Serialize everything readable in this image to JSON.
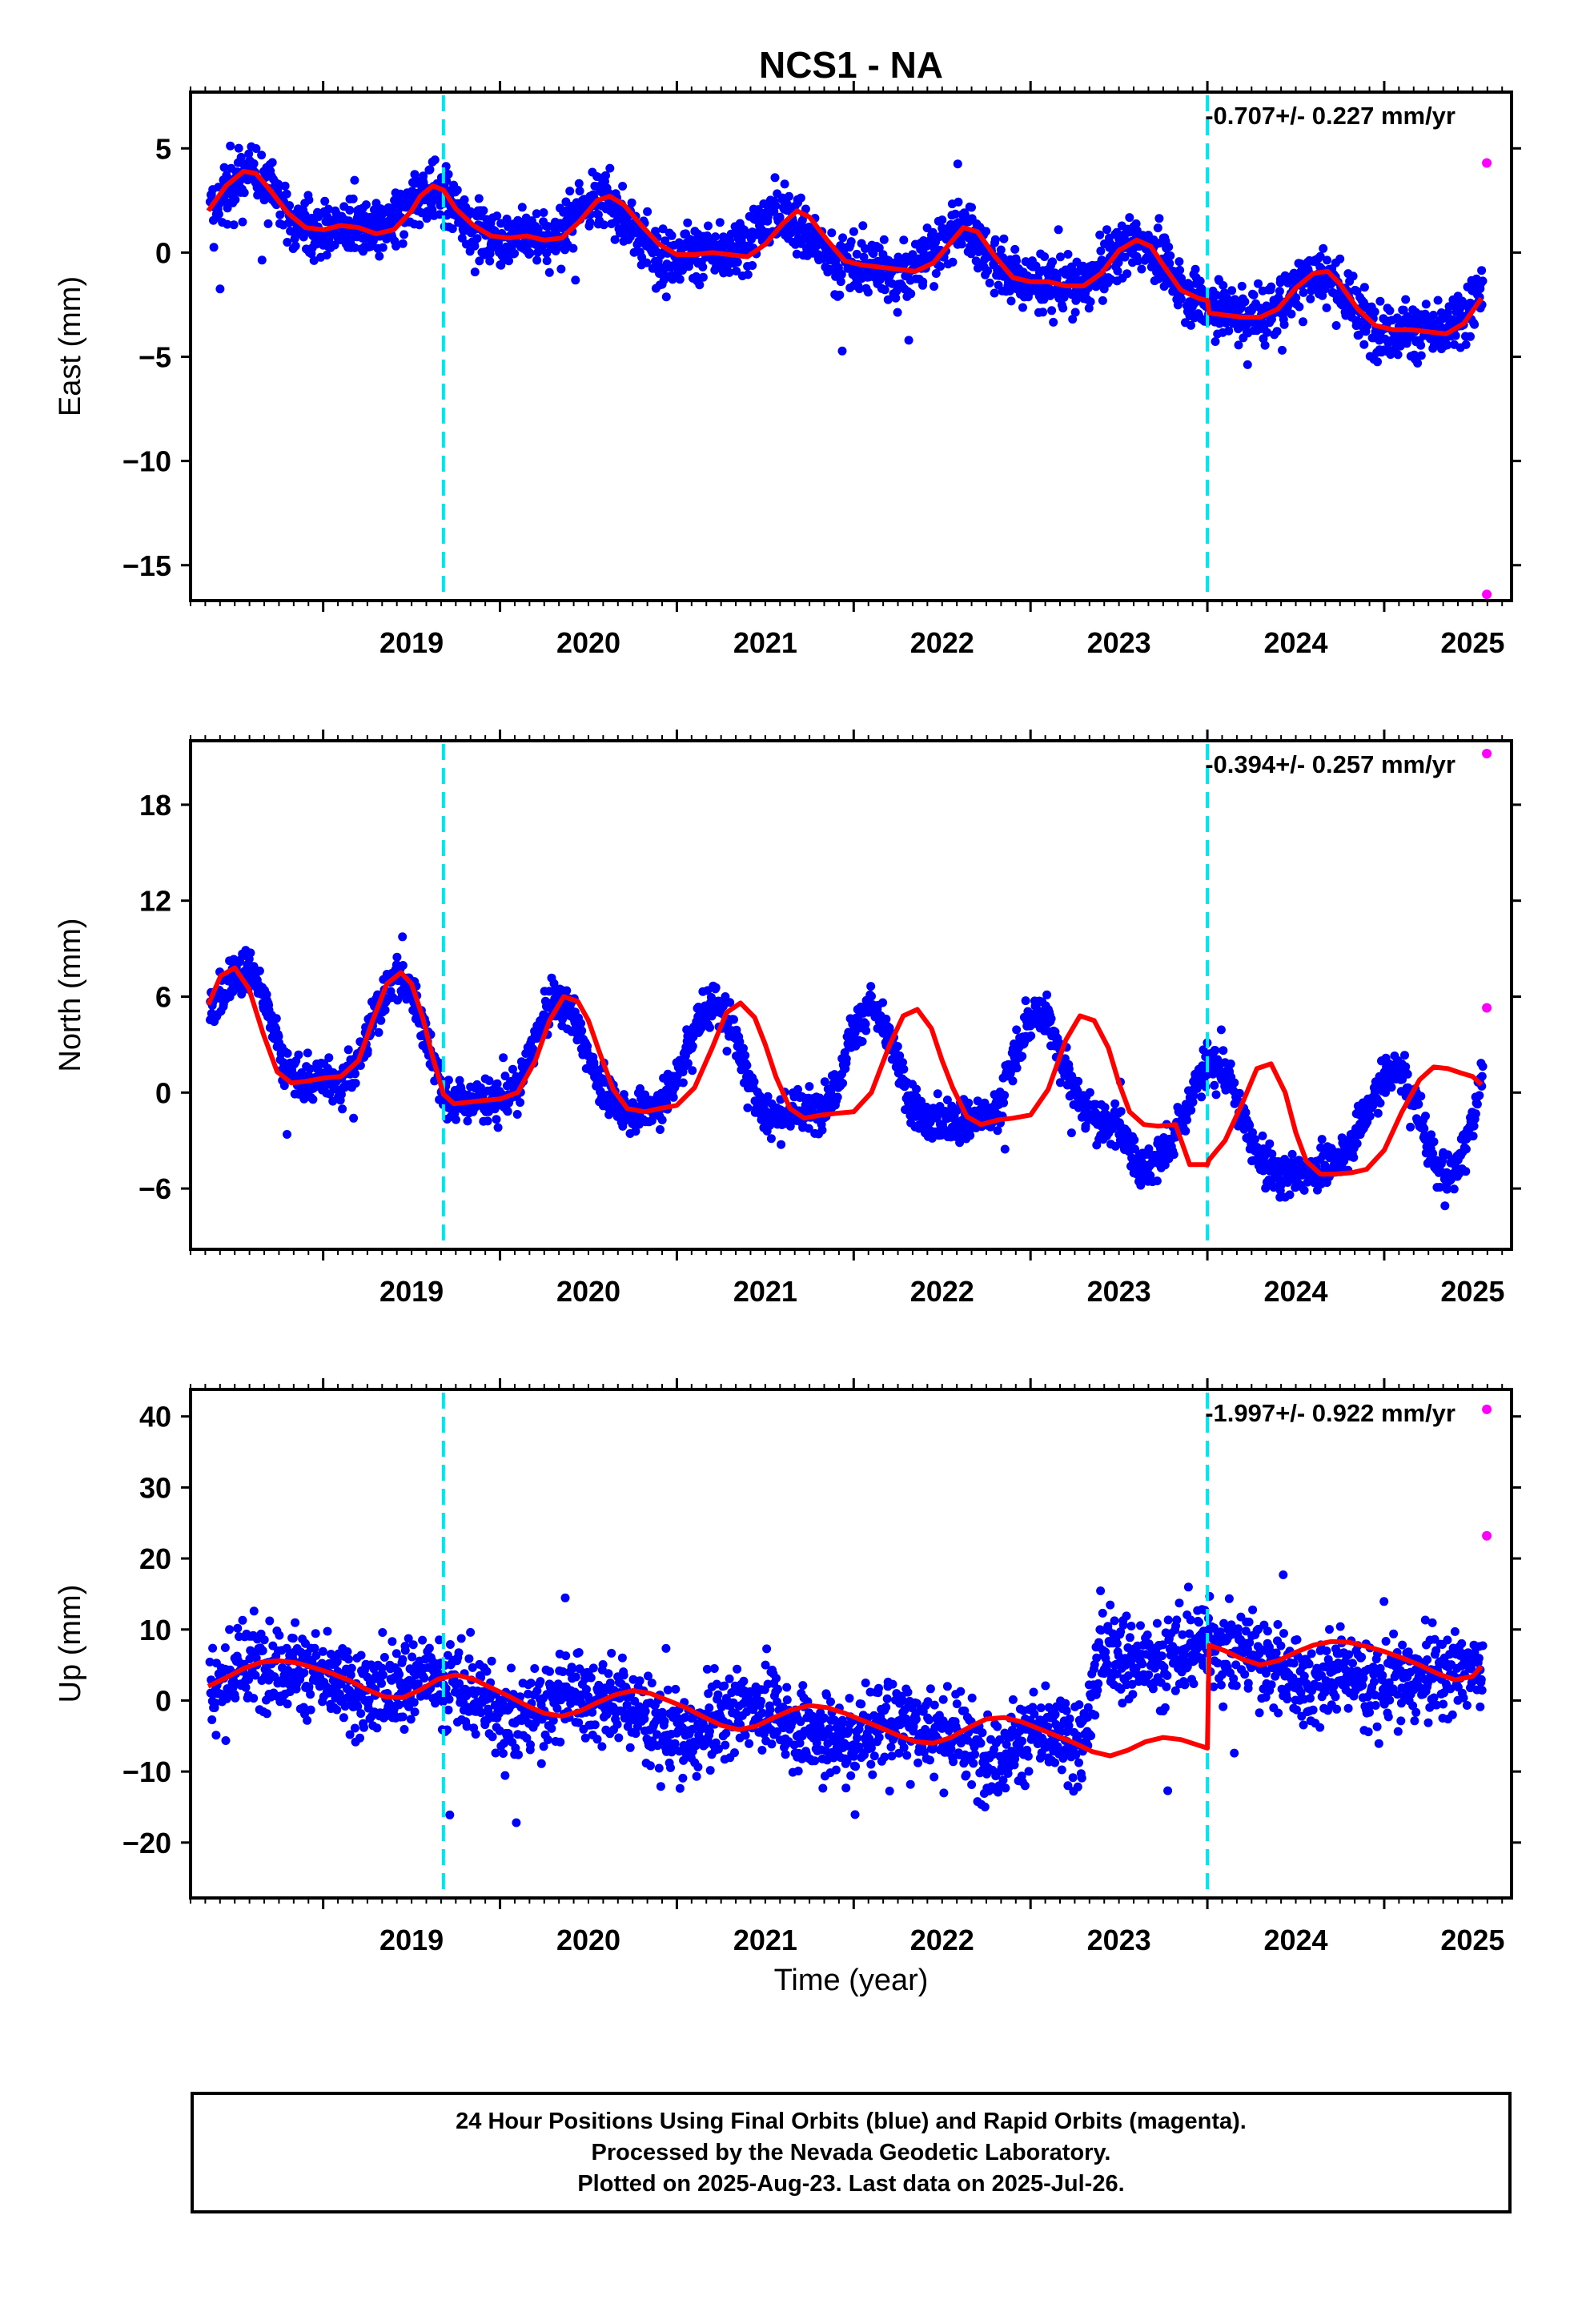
{
  "figure": {
    "title": "NCS1 - NA",
    "x_label": "Time (year)",
    "colors": {
      "final_orbits": "#0000ff",
      "rapid_orbits": "#ff00ff",
      "model": "#ff0000",
      "event_lines": "#00e5ee",
      "frame": "#000000"
    }
  },
  "footer": {
    "line1": "24 Hour Positions Using Final Orbits (blue) and Rapid Orbits (magenta).",
    "line2": "Processed by the Nevada Geodetic Laboratory.",
    "line3": "Plotted on 2025-Aug-23. Last data on 2025-Jul-26."
  },
  "chart_data": [
    {
      "type": "scatter",
      "ylabel": "East (mm)",
      "xlabel": "",
      "rate_label": "-0.707+/- 0.227 mm/yr",
      "xlim": [
        2018.25,
        2025.72
      ],
      "ylim": [
        -16.7,
        7.7
      ],
      "x_ticks": [
        2019,
        2020,
        2021,
        2022,
        2023,
        2024,
        2025
      ],
      "y_ticks": [
        5,
        0,
        -5,
        -10,
        -15
      ],
      "event_lines_x": [
        2019.68,
        2024.0
      ],
      "final_orbits_sampled": {
        "x": [
          2018.4,
          2018.5,
          2018.6,
          2018.7,
          2018.8,
          2018.9,
          2019.0,
          2019.1,
          2019.2,
          2019.3,
          2019.4,
          2019.5,
          2019.6,
          2019.7,
          2019.8,
          2019.9,
          2020.0,
          2020.1,
          2020.2,
          2020.3,
          2020.4,
          2020.5,
          2020.6,
          2020.7,
          2020.8,
          2020.9,
          2021.0,
          2021.1,
          2021.2,
          2021.3,
          2021.4,
          2021.5,
          2021.6,
          2021.7,
          2021.8,
          2021.9,
          2022.0,
          2022.1,
          2022.2,
          2022.3,
          2022.4,
          2022.5,
          2022.6,
          2022.7,
          2022.8,
          2022.9,
          2023.0,
          2023.1,
          2023.2,
          2023.3,
          2023.4,
          2023.5,
          2023.6,
          2023.7,
          2023.8,
          2023.9,
          2024.0,
          2024.1,
          2024.2,
          2024.3,
          2024.4,
          2024.5,
          2024.6,
          2024.7,
          2024.8,
          2024.9,
          2025.0,
          2025.1,
          2025.2,
          2025.3,
          2025.4,
          2025.5,
          2025.55
        ],
        "y": [
          2.0,
          3.3,
          3.9,
          3.2,
          1.8,
          1.2,
          1.0,
          1.2,
          1.1,
          0.9,
          1.3,
          2.5,
          3.2,
          2.5,
          1.5,
          0.9,
          0.6,
          0.7,
          0.6,
          0.7,
          1.6,
          2.6,
          2.5,
          1.6,
          0.6,
          -0.1,
          -0.1,
          0.0,
          -0.1,
          -0.2,
          0.4,
          1.5,
          2.0,
          1.4,
          0.3,
          -0.5,
          -0.6,
          -0.7,
          -0.8,
          -0.9,
          -0.4,
          0.6,
          1.3,
          0.7,
          -0.5,
          -1.3,
          -1.4,
          -1.4,
          -1.6,
          -1.5,
          -0.9,
          0.2,
          0.6,
          0.0,
          -1.1,
          -2.0,
          -2.4,
          -2.8,
          -3.0,
          -3.1,
          -2.6,
          -1.6,
          -0.8,
          -1.2,
          -2.4,
          -3.4,
          -3.7,
          -3.7,
          -3.8,
          -3.9,
          -3.5,
          -2.6,
          -1.8
        ]
      },
      "rapid_orbits": {
        "x": [
          2025.58,
          2025.58
        ],
        "y": [
          4.3,
          -16.4
        ]
      },
      "model_line": {
        "x": [
          2018.35,
          2018.45,
          2018.55,
          2018.62,
          2018.7,
          2018.8,
          2018.9,
          2019.0,
          2019.1,
          2019.2,
          2019.3,
          2019.4,
          2019.5,
          2019.55,
          2019.62,
          2019.68,
          2019.75,
          2019.85,
          2019.95,
          2020.05,
          2020.15,
          2020.25,
          2020.35,
          2020.45,
          2020.55,
          2020.62,
          2020.7,
          2020.8,
          2020.9,
          2021.0,
          2021.1,
          2021.2,
          2021.3,
          2021.4,
          2021.5,
          2021.6,
          2021.68,
          2021.75,
          2021.85,
          2021.95,
          2022.05,
          2022.15,
          2022.25,
          2022.35,
          2022.45,
          2022.55,
          2022.62,
          2022.7,
          2022.8,
          2022.9,
          2023.0,
          2023.1,
          2023.2,
          2023.3,
          2023.4,
          2023.5,
          2023.6,
          2023.68,
          2023.75,
          2023.85,
          2023.95,
          2024.0,
          2024.01,
          2024.1,
          2024.2,
          2024.3,
          2024.4,
          2024.5,
          2024.6,
          2024.68,
          2024.75,
          2024.85,
          2024.95,
          2025.05,
          2025.15,
          2025.25,
          2025.35,
          2025.45,
          2025.55
        ],
        "y": [
          2.0,
          3.2,
          3.9,
          3.8,
          3.0,
          1.9,
          1.2,
          1.1,
          1.3,
          1.2,
          0.9,
          1.1,
          2.0,
          2.7,
          3.2,
          3.0,
          2.1,
          1.3,
          0.8,
          0.7,
          0.8,
          0.6,
          0.7,
          1.5,
          2.5,
          2.7,
          2.3,
          1.3,
          0.4,
          -0.1,
          -0.1,
          0.0,
          -0.1,
          -0.2,
          0.4,
          1.4,
          2.0,
          1.7,
          0.6,
          -0.4,
          -0.6,
          -0.7,
          -0.8,
          -0.9,
          -0.5,
          0.5,
          1.2,
          1.0,
          -0.2,
          -1.2,
          -1.4,
          -1.4,
          -1.6,
          -1.6,
          -1.0,
          0.1,
          0.6,
          0.3,
          -0.6,
          -1.8,
          -2.2,
          -2.3,
          -2.9,
          -3.0,
          -3.1,
          -3.1,
          -2.7,
          -1.7,
          -1.0,
          -0.9,
          -1.5,
          -2.7,
          -3.5,
          -3.7,
          -3.7,
          -3.8,
          -3.9,
          -3.4,
          -2.2
        ]
      }
    },
    {
      "type": "scatter",
      "ylabel": "North (mm)",
      "xlabel": "",
      "rate_label": "-0.394+/- 0.257 mm/yr",
      "xlim": [
        2018.25,
        2025.72
      ],
      "ylim": [
        -9.8,
        22.0
      ],
      "x_ticks": [
        2019,
        2020,
        2021,
        2022,
        2023,
        2024,
        2025
      ],
      "y_ticks": [
        18,
        12,
        6,
        0,
        -6
      ],
      "event_lines_x": [
        2019.68,
        2024.0
      ],
      "final_orbits_sampled": {
        "x": [
          2018.4,
          2018.5,
          2018.6,
          2018.7,
          2018.8,
          2018.9,
          2019.0,
          2019.1,
          2019.2,
          2019.3,
          2019.4,
          2019.5,
          2019.6,
          2019.7,
          2019.8,
          2019.9,
          2020.0,
          2020.1,
          2020.2,
          2020.3,
          2020.4,
          2020.5,
          2020.6,
          2020.7,
          2020.8,
          2020.9,
          2021.0,
          2021.1,
          2021.2,
          2021.3,
          2021.4,
          2021.5,
          2021.6,
          2021.7,
          2021.8,
          2021.9,
          2022.0,
          2022.1,
          2022.2,
          2022.3,
          2022.4,
          2022.5,
          2022.6,
          2022.7,
          2022.8,
          2022.9,
          2023.0,
          2023.1,
          2023.2,
          2023.3,
          2023.4,
          2023.5,
          2023.6,
          2023.7,
          2023.8,
          2023.9,
          2024.0,
          2024.1,
          2024.2,
          2024.3,
          2024.4,
          2024.5,
          2024.6,
          2024.7,
          2024.8,
          2024.9,
          2025.0,
          2025.1,
          2025.2,
          2025.3,
          2025.4,
          2025.5,
          2025.55
        ],
        "y": [
          5.5,
          7.6,
          7.8,
          4.7,
          1.2,
          0.6,
          0.9,
          0.8,
          1.9,
          5.1,
          7.4,
          6.3,
          3.1,
          -0.7,
          -0.6,
          -0.4,
          -0.4,
          0.2,
          3.4,
          5.8,
          5.3,
          2.3,
          -0.3,
          -1.1,
          -1.0,
          -0.8,
          0.9,
          4.0,
          5.7,
          4.6,
          1.0,
          -1.4,
          -1.4,
          -1.2,
          -1.1,
          0.4,
          3.9,
          5.4,
          3.4,
          -0.1,
          -1.8,
          -1.8,
          -1.6,
          -1.6,
          -1.3,
          1.8,
          4.7,
          4.8,
          1.5,
          -1.1,
          -1.8,
          -2.0,
          -4.5,
          -4.3,
          -3.1,
          -0.6,
          2.0,
          1.3,
          -1.6,
          -4.3,
          -5.2,
          -5.0,
          -4.9,
          -4.6,
          -3.3,
          -1.0,
          1.0,
          1.5,
          -1.5,
          -4.8,
          -5.0,
          -1.7,
          1.4
        ]
      },
      "rapid_orbits": {
        "x": [
          2025.58,
          2025.58
        ],
        "y": [
          21.2,
          5.3
        ]
      },
      "model_line": {
        "x": [
          2018.35,
          2018.42,
          2018.5,
          2018.58,
          2018.66,
          2018.74,
          2018.82,
          2018.9,
          2019.0,
          2019.1,
          2019.2,
          2019.28,
          2019.36,
          2019.44,
          2019.5,
          2019.56,
          2019.62,
          2019.68,
          2019.74,
          2019.82,
          2019.9,
          2020.0,
          2020.1,
          2020.2,
          2020.28,
          2020.36,
          2020.44,
          2020.5,
          2020.56,
          2020.64,
          2020.72,
          2020.82,
          2020.9,
          2021.0,
          2021.1,
          2021.2,
          2021.28,
          2021.36,
          2021.44,
          2021.5,
          2021.56,
          2021.64,
          2021.72,
          2021.82,
          2021.9,
          2022.0,
          2022.1,
          2022.2,
          2022.28,
          2022.36,
          2022.44,
          2022.5,
          2022.56,
          2022.64,
          2022.72,
          2022.82,
          2022.9,
          2023.0,
          2023.1,
          2023.2,
          2023.28,
          2023.36,
          2023.44,
          2023.5,
          2023.56,
          2023.64,
          2023.72,
          2023.82,
          2023.9,
          2024.0,
          2024.01,
          2024.1,
          2024.2,
          2024.28,
          2024.36,
          2024.44,
          2024.5,
          2024.56,
          2024.64,
          2024.72,
          2024.82,
          2024.9,
          2025.0,
          2025.1,
          2025.2,
          2025.28,
          2025.36,
          2025.44,
          2025.5,
          2025.55
        ],
        "y": [
          5.5,
          7.3,
          7.8,
          6.5,
          3.7,
          1.3,
          0.6,
          0.7,
          0.9,
          1.0,
          2.0,
          4.5,
          6.8,
          7.5,
          6.8,
          4.8,
          2.2,
          -0.1,
          -0.7,
          -0.6,
          -0.5,
          -0.4,
          0.0,
          2.0,
          4.5,
          6.0,
          5.7,
          4.5,
          2.6,
          0.2,
          -1.0,
          -1.2,
          -1.0,
          -0.8,
          0.3,
          2.8,
          5.0,
          5.6,
          4.7,
          3.0,
          1.0,
          -1.0,
          -1.6,
          -1.4,
          -1.3,
          -1.2,
          0.0,
          2.9,
          4.8,
          5.2,
          4.0,
          2.0,
          0.3,
          -1.5,
          -2.0,
          -1.7,
          -1.6,
          -1.4,
          0.2,
          3.3,
          4.8,
          4.5,
          2.8,
          0.6,
          -1.2,
          -2.0,
          -2.1,
          -2.0,
          -4.5,
          -4.5,
          -4.2,
          -3.0,
          -0.6,
          1.5,
          1.8,
          0.0,
          -2.5,
          -4.3,
          -5.1,
          -5.1,
          -5.0,
          -4.8,
          -3.6,
          -1.2,
          0.8,
          1.6,
          1.5,
          1.2,
          1.0,
          0.5
        ]
      }
    },
    {
      "type": "scatter",
      "ylabel": "Up (mm)",
      "xlabel": "Time (year)",
      "rate_label": "-1.997+/- 0.922 mm/yr",
      "xlim": [
        2018.25,
        2025.72
      ],
      "ylim": [
        -27.8,
        43.8
      ],
      "x_ticks": [
        2019,
        2020,
        2021,
        2022,
        2023,
        2024,
        2025
      ],
      "y_ticks": [
        40,
        30,
        20,
        10,
        0,
        -10,
        -20
      ],
      "event_lines_x": [
        2019.68,
        2024.0
      ],
      "final_orbits_sampled": {
        "x": [
          2018.4,
          2018.5,
          2018.6,
          2018.7,
          2018.8,
          2018.9,
          2019.0,
          2019.1,
          2019.2,
          2019.3,
          2019.4,
          2019.5,
          2019.6,
          2019.7,
          2019.8,
          2019.9,
          2020.0,
          2020.1,
          2020.2,
          2020.3,
          2020.4,
          2020.5,
          2020.6,
          2020.7,
          2020.8,
          2020.9,
          2021.0,
          2021.1,
          2021.2,
          2021.3,
          2021.4,
          2021.5,
          2021.6,
          2021.7,
          2021.8,
          2021.9,
          2022.0,
          2022.1,
          2022.2,
          2022.3,
          2022.4,
          2022.5,
          2022.6,
          2022.7,
          2022.8,
          2022.9,
          2023.0,
          2023.1,
          2023.2,
          2023.3,
          2023.4,
          2023.5,
          2023.6,
          2023.7,
          2023.8,
          2023.9,
          2024.0,
          2024.1,
          2024.2,
          2024.3,
          2024.4,
          2024.5,
          2024.6,
          2024.7,
          2024.8,
          2024.9,
          2025.0,
          2025.1,
          2025.2,
          2025.3,
          2025.4,
          2025.5,
          2025.55
        ],
        "y": [
          2.0,
          4.0,
          5.4,
          5.5,
          4.8,
          4.0,
          3.0,
          1.8,
          0.5,
          1.0,
          2.5,
          3.4,
          3.5,
          2.6,
          1.4,
          0.2,
          -1.3,
          -2.4,
          -1.8,
          0.2,
          1.4,
          0.9,
          -0.1,
          -0.5,
          -1.8,
          -3.6,
          -5.2,
          -4.9,
          -3.0,
          -1.4,
          -0.6,
          -1.2,
          -2.5,
          -3.6,
          -4.6,
          -5.7,
          -5.8,
          -4.0,
          -2.5,
          -2.6,
          -3.4,
          -4.3,
          -5.3,
          -7.5,
          -7.9,
          -6.4,
          -4.8,
          -5.0,
          -6.0,
          -6.5,
          8.0,
          7.0,
          5.6,
          5.2,
          6.0,
          7.5,
          8.6,
          8.0,
          7.0,
          6.0,
          4.8,
          3.0,
          2.6,
          3.2,
          4.6,
          2.0,
          2.4,
          3.0,
          3.2,
          3.8,
          4.2,
          5.0,
          5.0
        ]
      },
      "rapid_orbits": {
        "x": [
          2025.58,
          2025.58
        ],
        "y": [
          41.0,
          23.2
        ]
      },
      "model_line": {
        "x": [
          2018.35,
          2018.45,
          2018.55,
          2018.65,
          2018.75,
          2018.85,
          2018.95,
          2019.05,
          2019.15,
          2019.25,
          2019.35,
          2019.45,
          2019.55,
          2019.65,
          2019.75,
          2019.85,
          2019.95,
          2020.05,
          2020.15,
          2020.25,
          2020.35,
          2020.45,
          2020.55,
          2020.65,
          2020.75,
          2020.85,
          2020.95,
          2021.05,
          2021.15,
          2021.25,
          2021.35,
          2021.45,
          2021.55,
          2021.65,
          2021.75,
          2021.85,
          2021.95,
          2022.05,
          2022.15,
          2022.25,
          2022.35,
          2022.45,
          2022.55,
          2022.65,
          2022.75,
          2022.85,
          2022.95,
          2023.05,
          2023.15,
          2023.25,
          2023.35,
          2023.45,
          2023.55,
          2023.65,
          2023.75,
          2023.85,
          2023.95,
          2024.0,
          2024.01,
          2024.1,
          2024.2,
          2024.3,
          2024.4,
          2024.5,
          2024.6,
          2024.7,
          2024.8,
          2024.9,
          2025.0,
          2025.1,
          2025.2,
          2025.3,
          2025.4,
          2025.5,
          2025.55
        ],
        "y": [
          2.0,
          3.2,
          4.5,
          5.4,
          5.6,
          5.3,
          4.6,
          3.8,
          2.8,
          1.5,
          0.5,
          0.4,
          1.5,
          3.0,
          3.6,
          3.0,
          1.8,
          0.6,
          -0.7,
          -1.8,
          -2.2,
          -1.5,
          -0.3,
          0.8,
          1.4,
          1.0,
          0.0,
          -1.0,
          -2.3,
          -3.5,
          -4.1,
          -3.6,
          -2.4,
          -1.3,
          -0.7,
          -1.0,
          -1.8,
          -2.8,
          -3.8,
          -4.9,
          -5.8,
          -6.0,
          -5.2,
          -3.8,
          -2.6,
          -2.4,
          -3.0,
          -4.0,
          -5.0,
          -6.0,
          -7.2,
          -7.8,
          -7.0,
          -5.8,
          -5.2,
          -5.5,
          -6.3,
          -6.7,
          7.8,
          7.0,
          5.8,
          5.0,
          5.6,
          6.8,
          7.8,
          8.3,
          8.2,
          7.6,
          6.9,
          6.0,
          5.0,
          3.8,
          2.9,
          3.4,
          4.8
        ]
      }
    }
  ]
}
